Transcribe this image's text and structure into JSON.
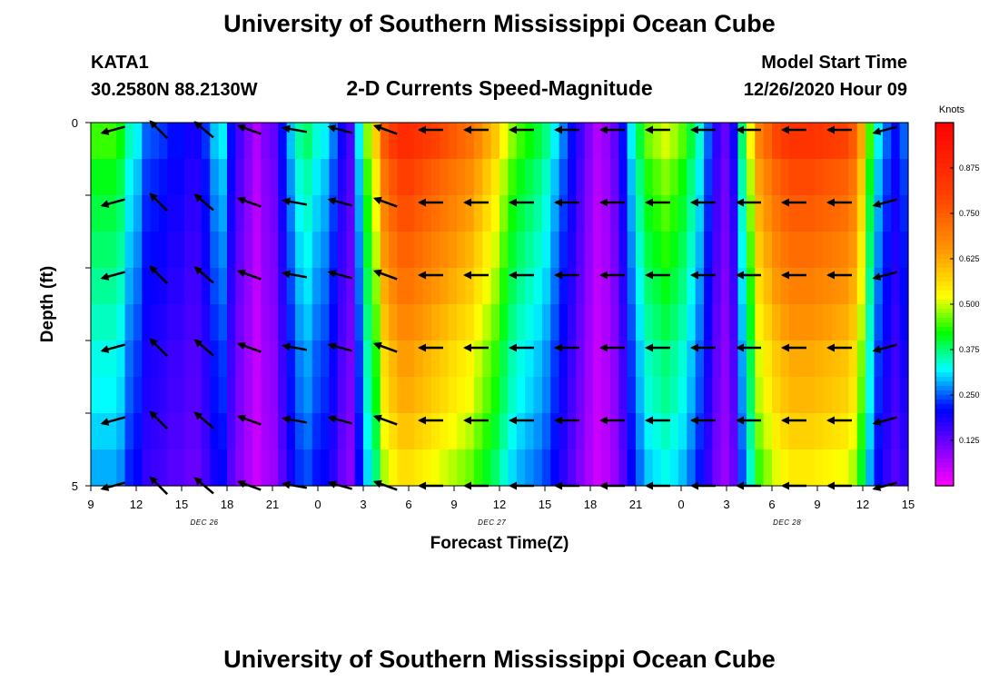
{
  "header": {
    "top_title": "University of Southern Mississippi Ocean Cube",
    "bottom_title": "University of Southern Mississippi Ocean Cube",
    "station_id": "KATA1",
    "station_coords": "30.2580N 88.2130W",
    "model_start_label": "Model Start Time",
    "model_start_value": "12/26/2020 Hour 09"
  },
  "chart_data": {
    "type": "heatmap",
    "title": "2-D Currents Speed-Magnitude",
    "xlabel": "Forecast Time(Z)",
    "ylabel": "Depth (ft)",
    "x_hours_range": [
      0,
      54
    ],
    "y_range": [
      0,
      5
    ],
    "x_tick_hours": [
      0,
      3,
      6,
      9,
      12,
      15,
      18,
      21,
      24,
      27,
      30,
      33,
      36,
      39,
      42,
      45,
      48,
      51,
      54
    ],
    "x_tick_labels": [
      "9",
      "12",
      "15",
      "18",
      "21",
      "0",
      "3",
      "6",
      "9",
      "12",
      "15",
      "18",
      "21",
      "0",
      "3",
      "6",
      "9",
      "12",
      "15"
    ],
    "y_tick_values": [
      0,
      1,
      2,
      3,
      4,
      5
    ],
    "y_tick_labels": [
      "0",
      "",
      "",
      "",
      "",
      "5"
    ],
    "date_labels": [
      {
        "text": "DEC 26",
        "hour": 7.5
      },
      {
        "text": "DEC 27",
        "hour": 26.5
      },
      {
        "text": "DEC 28",
        "hour": 46
      }
    ],
    "column_speeds": [
      0.42,
      0.42,
      0.42,
      0.4,
      0.33,
      0.3,
      0.24,
      0.23,
      0.22,
      0.2,
      0.2,
      0.18,
      0.18,
      0.22,
      0.28,
      0.3,
      0.2,
      0.14,
      0.1,
      0.06,
      0.1,
      0.12,
      0.2,
      0.28,
      0.34,
      0.36,
      0.32,
      0.3,
      0.25,
      0.18,
      0.14,
      0.3,
      0.45,
      0.55,
      0.72,
      0.78,
      0.82,
      0.82,
      0.8,
      0.78,
      0.76,
      0.74,
      0.72,
      0.7,
      0.68,
      0.64,
      0.6,
      0.56,
      0.5,
      0.45,
      0.42,
      0.4,
      0.38,
      0.35,
      0.3,
      0.25,
      0.2,
      0.15,
      0.1,
      0.06,
      0.08,
      0.12,
      0.2,
      0.3,
      0.38,
      0.44,
      0.46,
      0.48,
      0.46,
      0.43,
      0.38,
      0.32,
      0.24,
      0.16,
      0.12,
      0.18,
      0.36,
      0.5,
      0.65,
      0.7,
      0.75,
      0.78,
      0.8,
      0.8,
      0.8,
      0.79,
      0.78,
      0.77,
      0.76,
      0.72,
      0.6,
      0.42,
      0.3,
      0.24,
      0.2,
      0.24
    ],
    "depth_factors": [
      1.05,
      0.98,
      0.94,
      0.9,
      0.86,
      0.82,
      0.78,
      0.76,
      0.72,
      0.68
    ],
    "arrow_rows_depth": [
      0.1,
      1.1,
      2.1,
      3.1,
      4.1,
      5.0
    ],
    "arrow_cols_hour": [
      1.5,
      4.5,
      7.5,
      10.5,
      13.5,
      16.5,
      19.5,
      22.5,
      25.5,
      28.5,
      31.5,
      34.5,
      37.5,
      40.5,
      43.5,
      46.5,
      49.5,
      52.5
    ],
    "arrow_directions_deg": [
      165,
      225,
      220,
      200,
      190,
      195,
      200,
      180,
      180,
      180,
      180,
      180,
      180,
      180,
      180,
      180,
      180,
      165
    ],
    "colorbar": {
      "label": "Knots",
      "ticks": [
        "0.125",
        "0.250",
        "0.375",
        "0.500",
        "0.625",
        "0.750",
        "0.875"
      ],
      "range": [
        0,
        1
      ]
    }
  }
}
